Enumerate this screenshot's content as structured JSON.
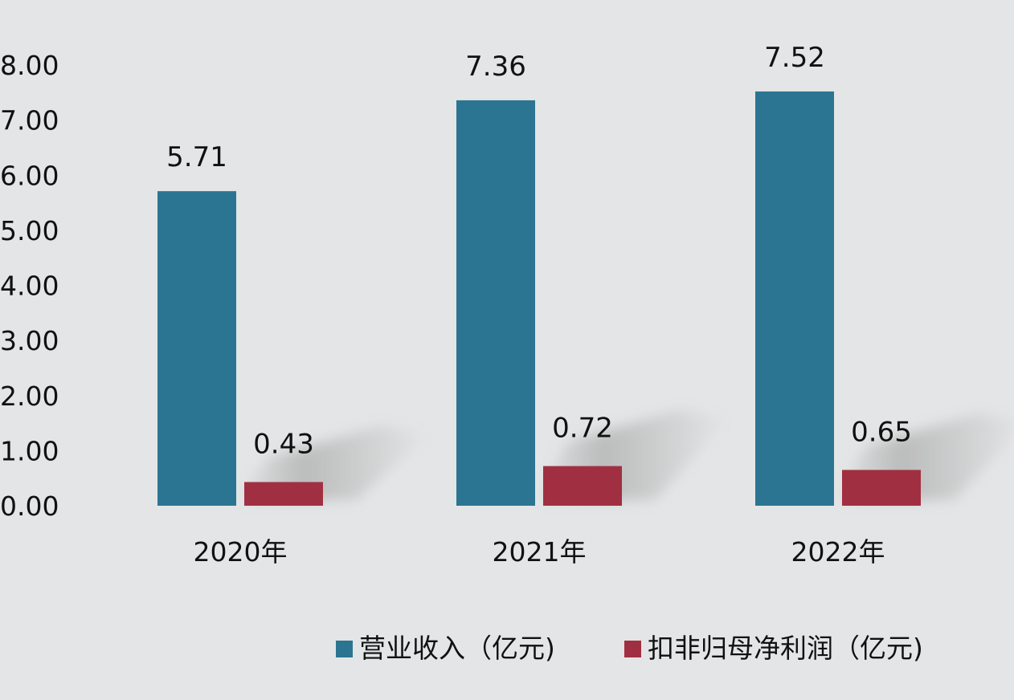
{
  "chart_data": {
    "type": "bar",
    "categories": [
      "2020年",
      "2021年",
      "2022年"
    ],
    "series": [
      {
        "name": "营业收入（亿元)",
        "values": [
          5.71,
          7.36,
          7.52
        ],
        "labels": [
          "5.71",
          "7.36",
          "7.52"
        ],
        "color": "#2b7592"
      },
      {
        "name": "扣非归母净利润（亿元)",
        "values": [
          0.43,
          0.72,
          0.65
        ],
        "labels": [
          "0.43",
          "0.72",
          "0.65"
        ],
        "color": "#a03041"
      }
    ],
    "ylim": [
      0,
      8
    ],
    "yticks": [
      "0.00",
      "1.00",
      "2.00",
      "3.00",
      "4.00",
      "5.00",
      "6.00",
      "7.00",
      "8.00"
    ],
    "grid": false,
    "legend": "bottom"
  }
}
